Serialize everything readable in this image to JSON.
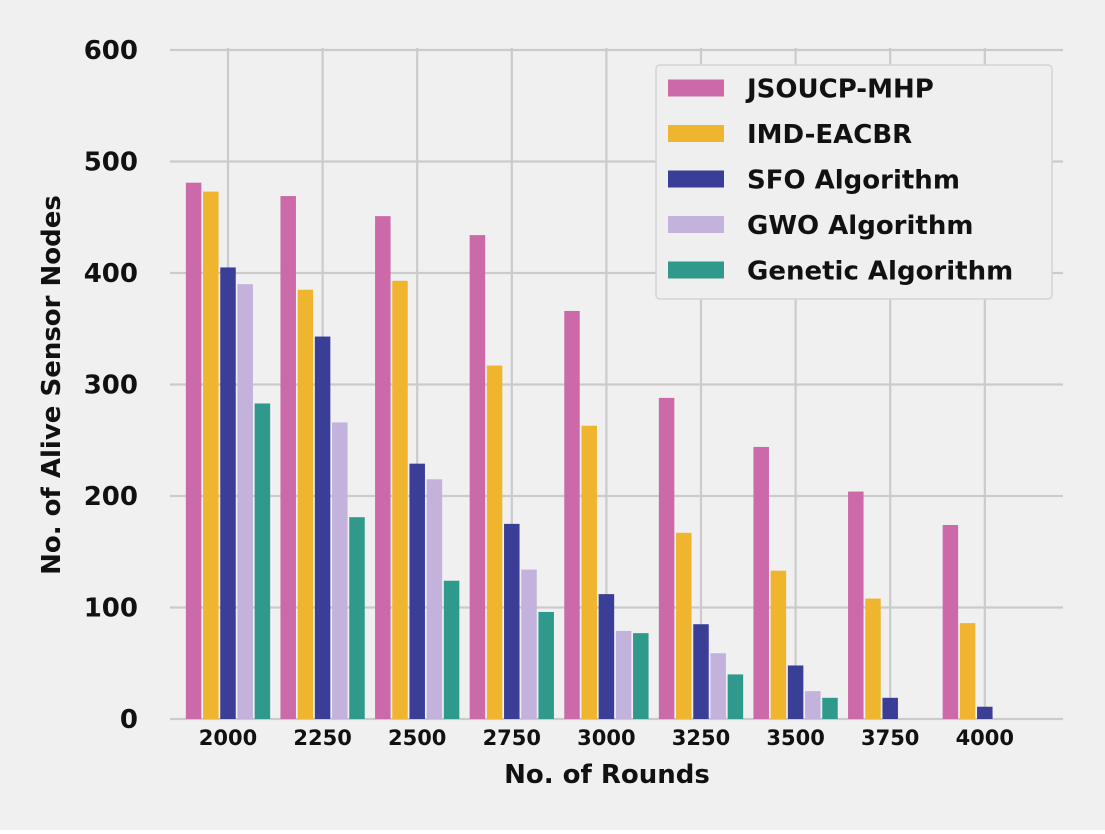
{
  "chart_data": {
    "type": "bar",
    "title": "",
    "xlabel": "No. of Rounds",
    "ylabel": "No. of Alive Sensor Nodes",
    "categories": [
      "2000",
      "2250",
      "2500",
      "2750",
      "3000",
      "3250",
      "3500",
      "3750",
      "4000"
    ],
    "ylim": [
      0,
      600
    ],
    "yticks": [
      "0",
      "100",
      "200",
      "300",
      "400",
      "500",
      "600"
    ],
    "grid": true,
    "legend_position": "top-right",
    "series": [
      {
        "name": "JSOUCP-MHP",
        "color": "#cc6aa9",
        "values": [
          481,
          469,
          451,
          434,
          366,
          288,
          244,
          204,
          174
        ]
      },
      {
        "name": "IMD-EACBR",
        "color": "#efb52f",
        "values": [
          473,
          385,
          393,
          317,
          263,
          167,
          133,
          108,
          86
        ]
      },
      {
        "name": "SFO Algorithm",
        "color": "#3a3e96",
        "values": [
          405,
          343,
          229,
          175,
          112,
          85,
          48,
          19,
          11
        ]
      },
      {
        "name": "GWO Algorithm",
        "color": "#c3b3dc",
        "values": [
          390,
          266,
          215,
          134,
          79,
          59,
          25,
          0,
          0
        ]
      },
      {
        "name": "Genetic Algorithm",
        "color": "#2f9a8c",
        "values": [
          283,
          181,
          124,
          96,
          77,
          40,
          19,
          0,
          0
        ]
      }
    ]
  },
  "colors": {
    "plot_background": "#f0f0f0",
    "grid": "#cbcbcb",
    "legend_background": "#efefef",
    "legend_border": "#d4d4d4",
    "text": "#111111"
  }
}
